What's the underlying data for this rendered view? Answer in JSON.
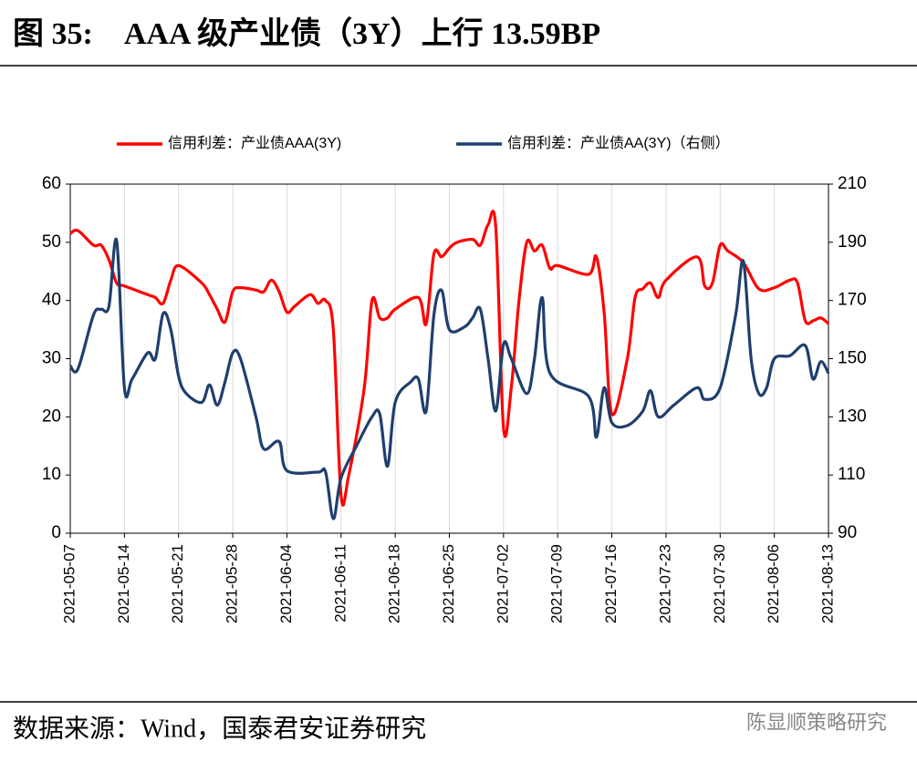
{
  "chart_data": {
    "type": "line",
    "title": "图 35:    AAA 级产业债（3Y）上行 13.59BP",
    "source": "数据来源：Wind，国泰君安证券研究",
    "watermark": "陈显顺策略研究",
    "xlim": [
      "2021-05-07",
      "2021-08-13"
    ],
    "xticks": [
      "2021-05-07",
      "2021-05-14",
      "2021-05-21",
      "2021-05-28",
      "2021-06-04",
      "2021-06-11",
      "2021-06-18",
      "2021-06-25",
      "2021-07-02",
      "2021-07-09",
      "2021-07-16",
      "2021-07-23",
      "2021-07-30",
      "2021-08-06",
      "2021-08-13"
    ],
    "ylim": [
      0,
      60
    ],
    "yticks": [
      0,
      10,
      20,
      30,
      40,
      50,
      60
    ],
    "y2lim": [
      90,
      210
    ],
    "y2ticks": [
      90,
      110,
      130,
      150,
      170,
      190,
      210
    ],
    "grid": true,
    "legend": "top",
    "series": [
      {
        "name": "信用利差：产业债AAA(3Y)",
        "color": "#ff0000",
        "x": [
          "2021-05-07",
          "2021-05-08",
          "2021-05-10",
          "2021-05-11",
          "2021-05-12",
          "2021-05-13",
          "2021-05-14",
          "2021-05-17",
          "2021-05-18",
          "2021-05-19",
          "2021-05-20",
          "2021-05-21",
          "2021-05-24",
          "2021-05-25",
          "2021-05-26",
          "2021-05-27",
          "2021-05-28",
          "2021-05-29",
          "2021-05-31",
          "2021-06-01",
          "2021-06-02",
          "2021-06-03",
          "2021-06-04",
          "2021-06-05",
          "2021-06-07",
          "2021-06-08",
          "2021-06-09",
          "2021-06-10",
          "2021-06-11",
          "2021-06-12",
          "2021-06-14",
          "2021-06-15",
          "2021-06-16",
          "2021-06-17",
          "2021-06-18",
          "2021-06-21",
          "2021-06-22",
          "2021-06-23",
          "2021-06-24",
          "2021-06-25",
          "2021-06-26",
          "2021-06-28",
          "2021-06-29",
          "2021-06-30",
          "2021-07-01",
          "2021-07-02",
          "2021-07-03",
          "2021-07-04",
          "2021-07-05",
          "2021-07-06",
          "2021-07-07",
          "2021-07-08",
          "2021-07-09",
          "2021-07-13",
          "2021-07-14",
          "2021-07-15",
          "2021-07-16",
          "2021-07-18",
          "2021-07-19",
          "2021-07-20",
          "2021-07-21",
          "2021-07-22",
          "2021-07-23",
          "2021-07-27",
          "2021-07-28",
          "2021-07-29",
          "2021-07-30",
          "2021-07-31",
          "2021-08-02",
          "2021-08-04",
          "2021-08-06",
          "2021-08-08",
          "2021-08-09",
          "2021-08-10",
          "2021-08-11",
          "2021-08-12",
          "2021-08-13"
        ],
        "values": [
          51.5,
          52,
          49.5,
          49.5,
          47,
          43,
          42.5,
          41,
          40.5,
          39.5,
          43.5,
          46,
          43,
          41,
          38.5,
          36.3,
          41.5,
          42.2,
          41.8,
          41.5,
          43.5,
          41.5,
          38,
          39,
          41,
          39.5,
          40,
          35,
          6.5,
          10,
          25,
          40,
          37,
          37,
          38.5,
          40.5,
          36,
          48,
          47.5,
          49,
          50,
          50.5,
          49.5,
          53,
          52.5,
          18,
          25,
          40,
          50,
          48.5,
          49.5,
          45.5,
          46,
          44.5,
          47.5,
          38,
          20.5,
          30,
          40.5,
          42,
          43,
          40.5,
          43.5,
          47.5,
          42.5,
          43,
          49.5,
          48.5,
          46.5,
          42,
          42.2,
          43.5,
          43,
          36.5,
          36.5,
          37,
          36
        ]
      },
      {
        "name": "信用利差：产业债AA(3Y)（右侧）",
        "color": "#1f3f6e",
        "axis": "y2",
        "x": [
          "2021-05-07",
          "2021-05-08",
          "2021-05-10",
          "2021-05-11",
          "2021-05-12",
          "2021-05-13",
          "2021-05-14",
          "2021-05-15",
          "2021-05-17",
          "2021-05-18",
          "2021-05-19",
          "2021-05-20",
          "2021-05-21",
          "2021-05-22",
          "2021-05-24",
          "2021-05-25",
          "2021-05-26",
          "2021-05-27",
          "2021-05-28",
          "2021-05-29",
          "2021-05-31",
          "2021-06-01",
          "2021-06-03",
          "2021-06-04",
          "2021-06-08",
          "2021-06-09",
          "2021-06-10",
          "2021-06-11",
          "2021-06-13",
          "2021-06-15",
          "2021-06-16",
          "2021-06-17",
          "2021-06-18",
          "2021-06-20",
          "2021-06-21",
          "2021-06-22",
          "2021-06-23",
          "2021-06-24",
          "2021-06-25",
          "2021-06-27",
          "2021-06-28",
          "2021-06-29",
          "2021-06-30",
          "2021-07-01",
          "2021-07-02",
          "2021-07-03",
          "2021-07-05",
          "2021-07-06",
          "2021-07-07",
          "2021-07-08",
          "2021-07-13",
          "2021-07-14",
          "2021-07-15",
          "2021-07-16",
          "2021-07-18",
          "2021-07-20",
          "2021-07-21",
          "2021-07-22",
          "2021-07-24",
          "2021-07-27",
          "2021-07-28",
          "2021-07-30",
          "2021-08-01",
          "2021-08-02",
          "2021-08-03",
          "2021-08-04",
          "2021-08-05",
          "2021-08-06",
          "2021-08-08",
          "2021-08-10",
          "2021-08-11",
          "2021-08-12",
          "2021-08-13"
        ],
        "values": [
          147.5,
          146.5,
          165,
          167,
          168,
          190.5,
          140,
          143,
          152,
          150,
          165.5,
          160,
          144,
          138,
          135,
          141,
          134,
          142,
          152,
          150,
          130,
          119,
          121.5,
          111.5,
          111,
          111,
          95,
          109,
          120,
          130,
          131,
          113,
          135,
          142,
          143,
          132,
          165,
          173.5,
          160,
          161,
          164,
          167,
          150,
          132,
          155,
          150,
          138,
          150,
          171,
          145,
          137,
          123,
          140,
          128,
          127,
          132,
          139,
          130,
          134,
          140,
          136,
          140,
          165,
          183.5,
          150,
          138,
          140,
          150,
          151,
          154.5,
          143,
          149,
          145
        ]
      }
    ]
  }
}
